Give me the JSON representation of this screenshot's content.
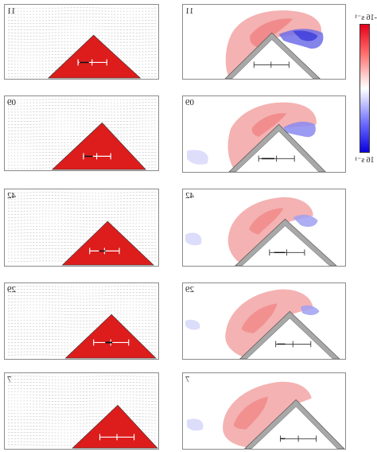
{
  "rows": [
    {
      "label": "11"
    },
    {
      "label": "09"
    },
    {
      "label": "42"
    },
    {
      "label": "29"
    },
    {
      "label": "7"
    }
  ],
  "colorbar": {
    "top_label": "-16 s⁻¹",
    "bottom_label": "16 s⁻¹",
    "top_color": "#e8001a",
    "bottom_color": "#0a00e0"
  },
  "colors": {
    "triangle": "#dd1c1c",
    "vorticity_positive": "#f08080",
    "vorticity_negative": "#6f6fe8"
  }
}
